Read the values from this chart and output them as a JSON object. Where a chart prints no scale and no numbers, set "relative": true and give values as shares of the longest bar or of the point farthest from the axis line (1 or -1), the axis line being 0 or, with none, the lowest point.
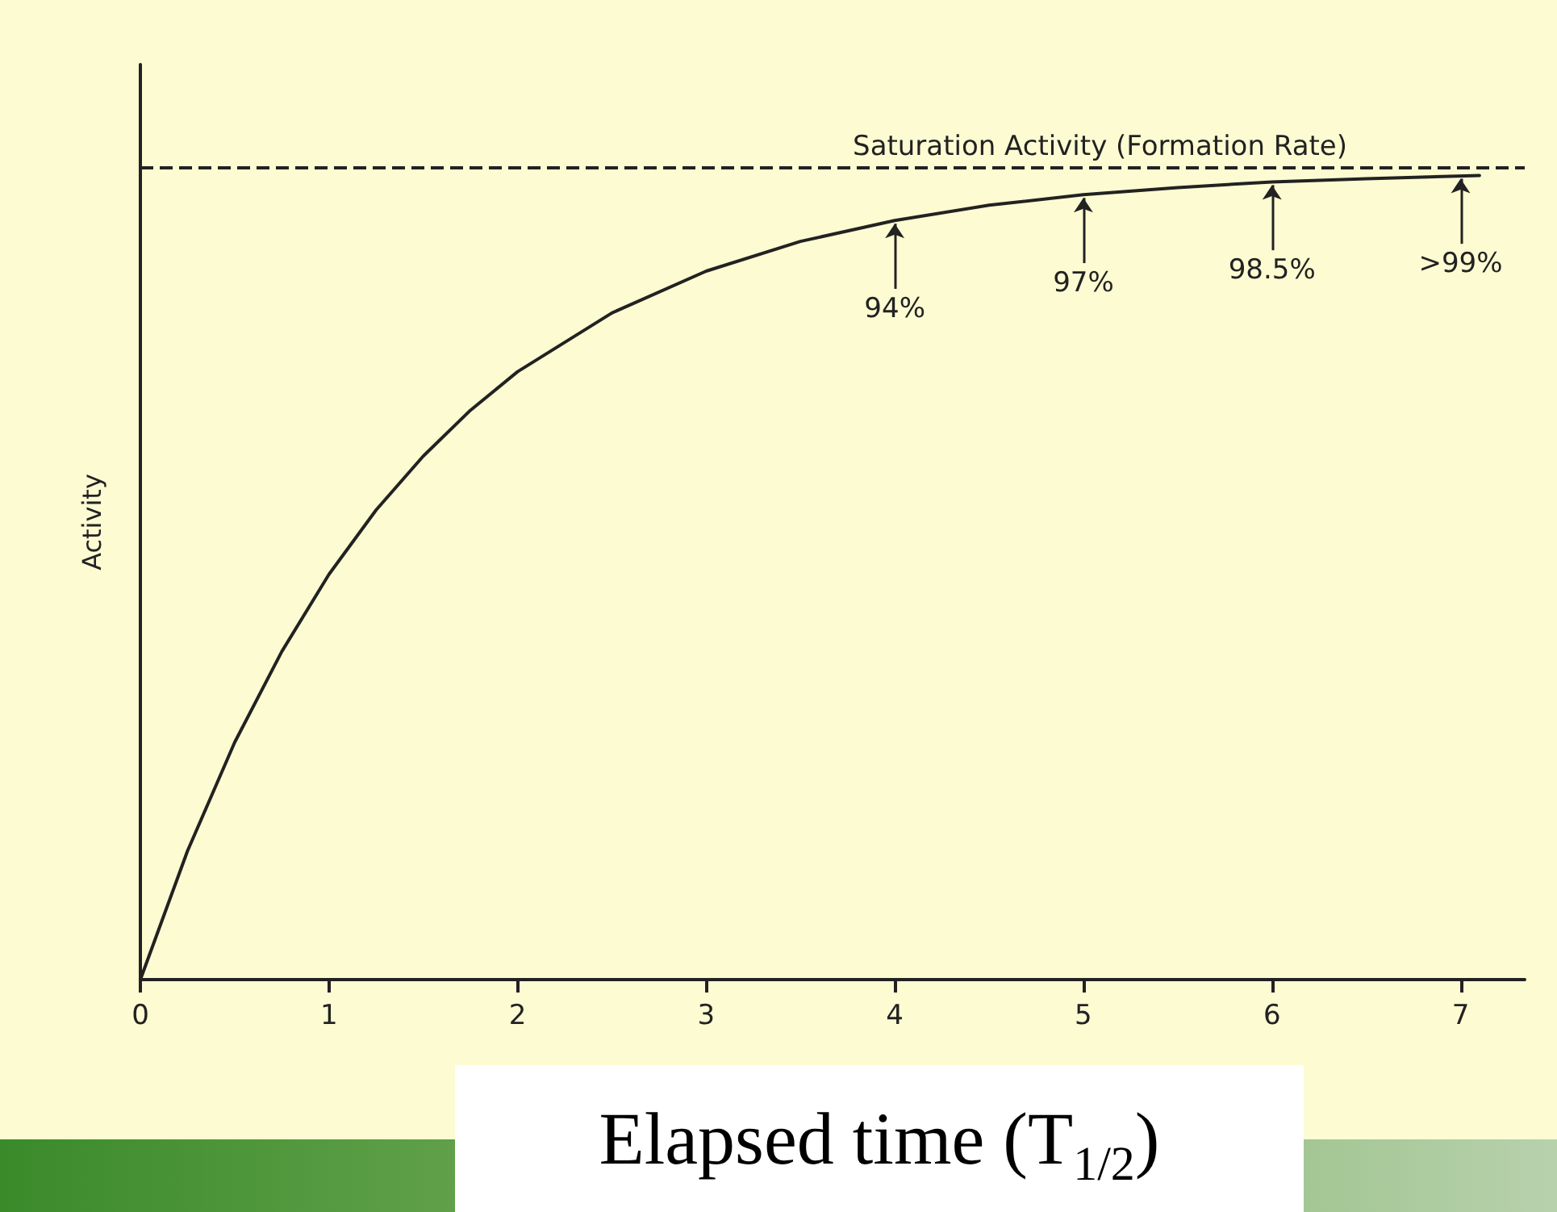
{
  "chart_data": {
    "type": "line",
    "relative": true,
    "xlabel": "Elapsed time (T$_{1/2}$)",
    "ylabel": "Activity",
    "x": [
      0,
      0.25,
      0.5,
      0.75,
      1,
      1.25,
      1.5,
      1.75,
      2,
      2.5,
      3,
      3.5,
      4,
      4.5,
      5,
      5.5,
      6,
      6.5,
      7.1
    ],
    "series": [
      {
        "color": "#222222",
        "values": [
          0,
          0.16,
          0.295,
          0.408,
          0.504,
          0.584,
          0.651,
          0.708,
          0.756,
          0.829,
          0.881,
          0.918,
          0.944,
          0.963,
          0.976,
          0.985,
          0.992,
          0.996,
          1
        ]
      }
    ],
    "xlim": [
      0,
      7.34
    ],
    "xticks": [
      0,
      1,
      2,
      3,
      4,
      5,
      6,
      7
    ],
    "ref_lines": [
      {
        "axis": "y",
        "value": 1.007,
        "label": "Saturation Activity (Formation Rate)",
        "color": "#222222",
        "line_style": "dashed"
      }
    ],
    "annotations": [
      {
        "text": "94%",
        "x": 4,
        "y": 0.944
      },
      {
        "text": "97%",
        "x": 5,
        "y": 0.976
      },
      {
        "text": "98.5%",
        "x": 6,
        "y": 0.992
      },
      {
        "text": ">99%",
        "x": 7,
        "y": 1.0
      }
    ],
    "grid": false,
    "marker": "none",
    "line_style": "solid"
  }
}
